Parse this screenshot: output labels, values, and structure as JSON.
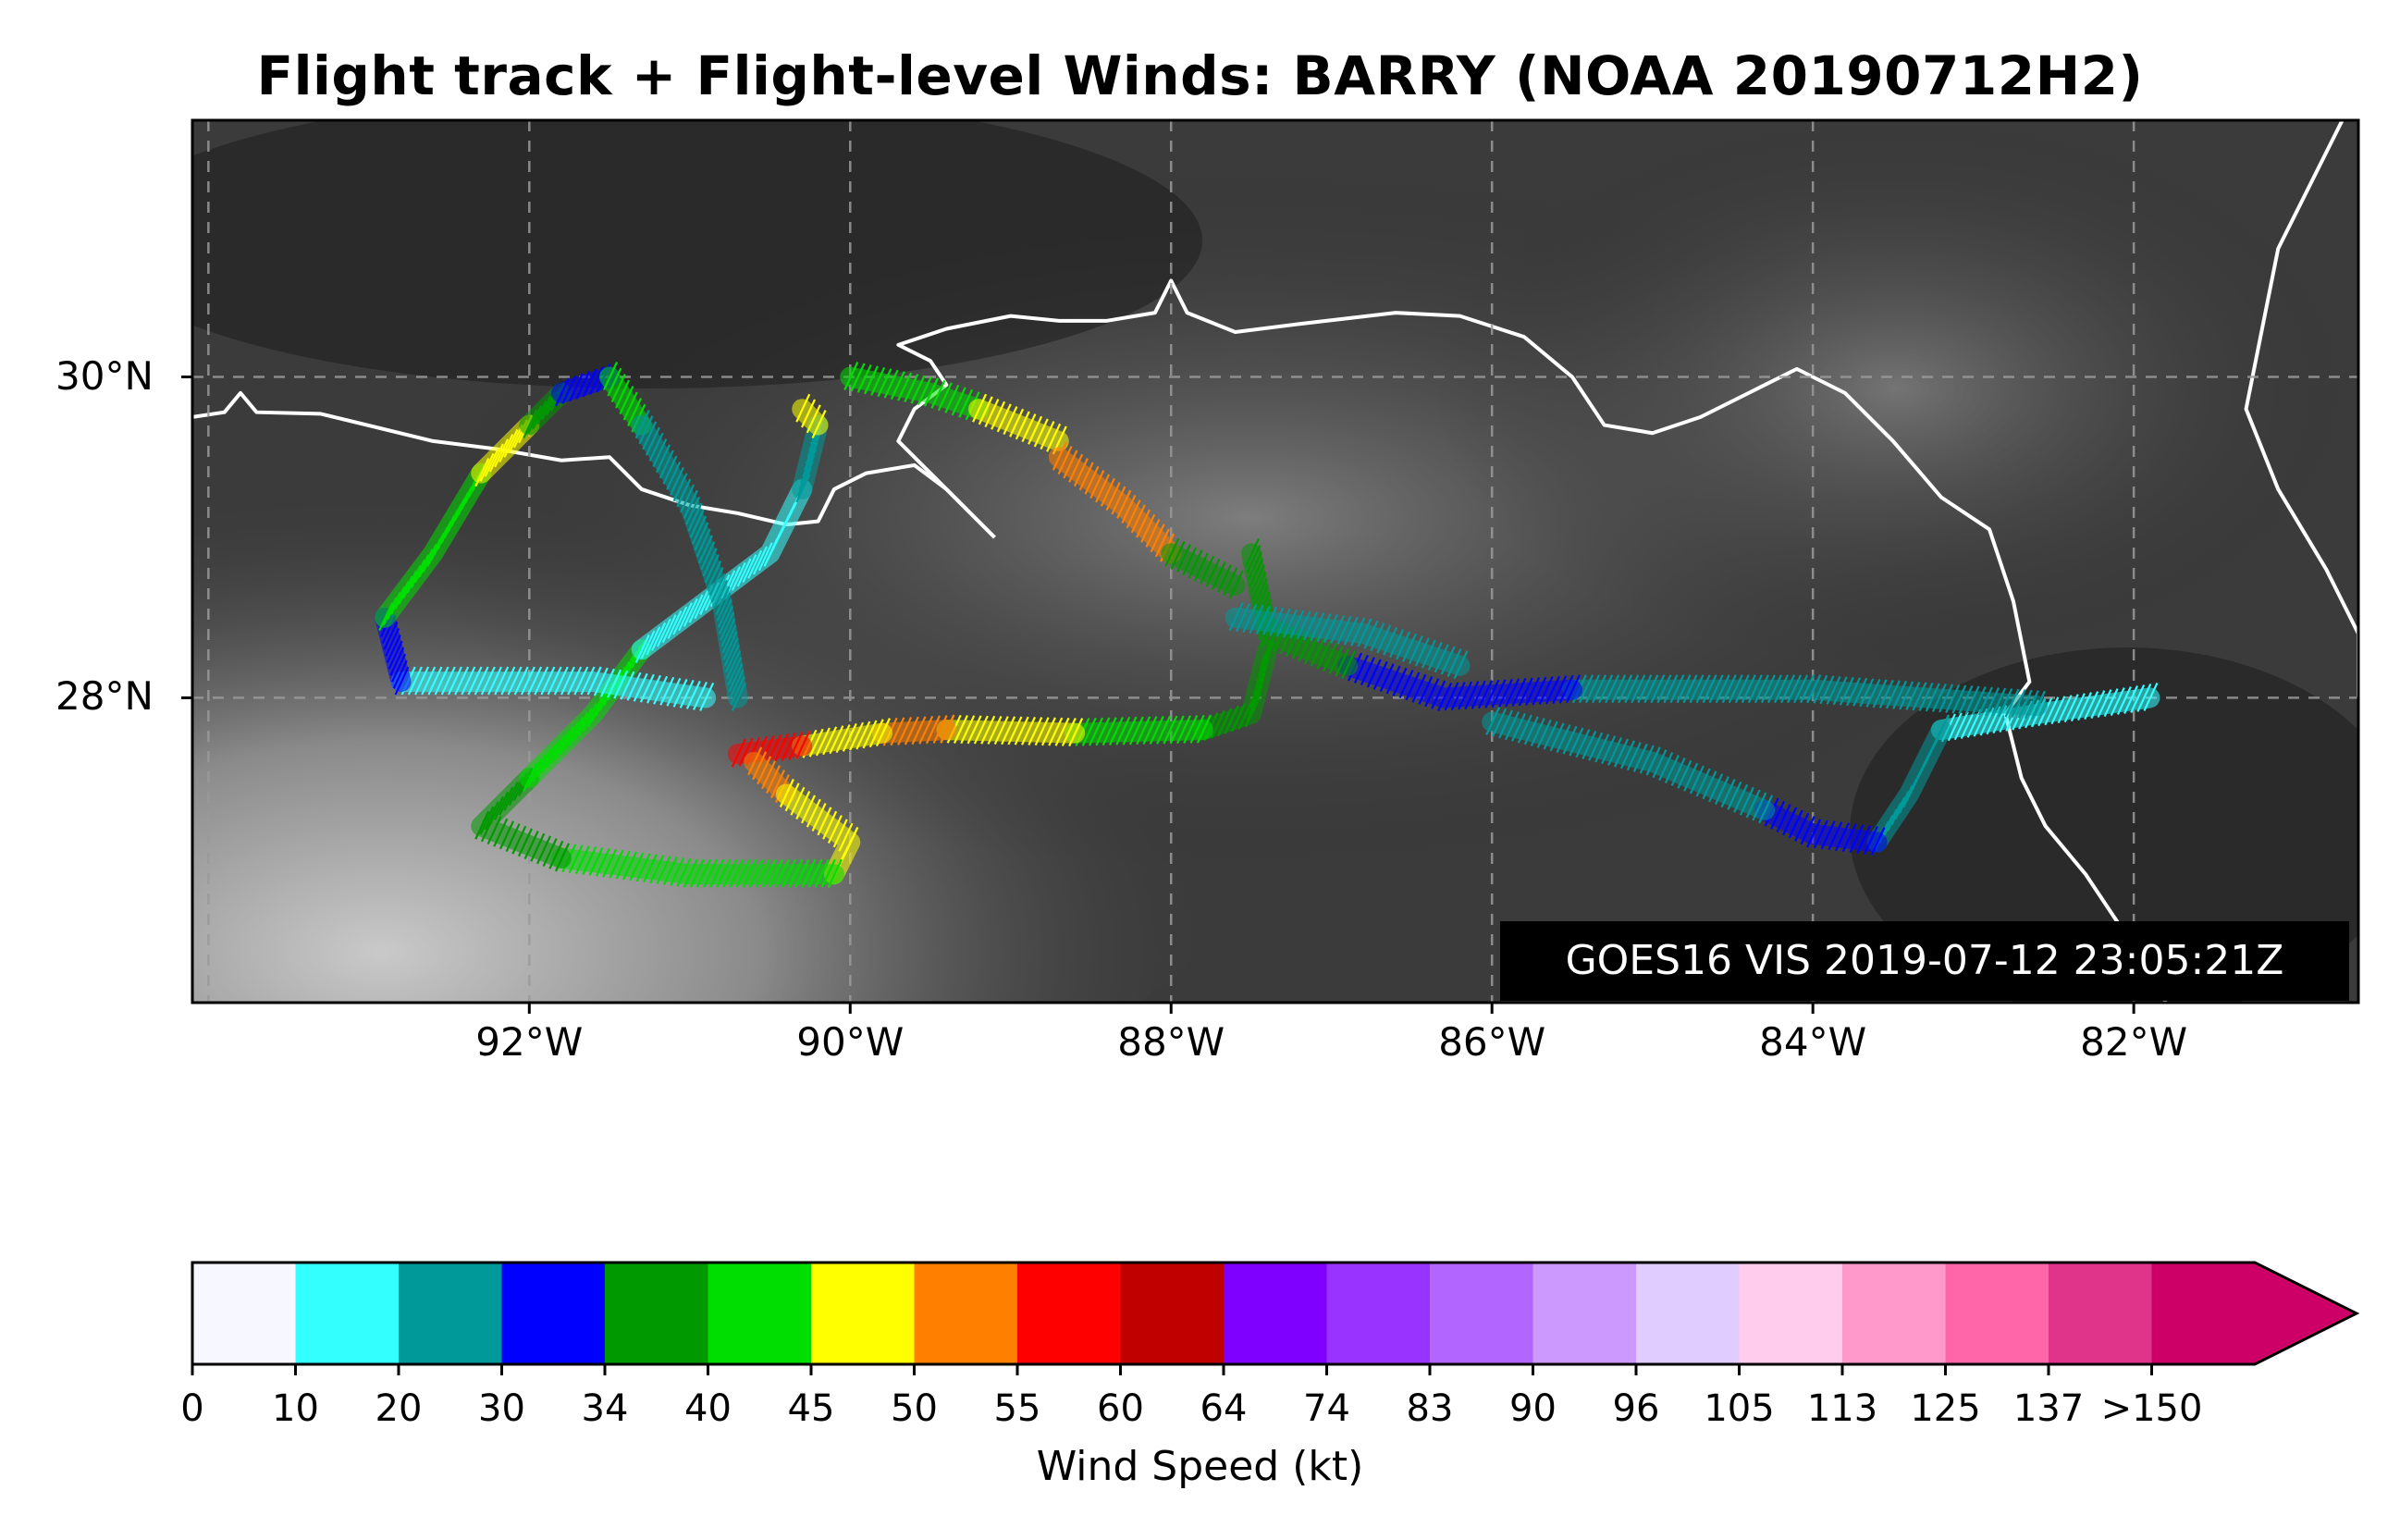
{
  "title": "Flight track + Flight-level Winds: BARRY (NOAA 20190712H2)",
  "map": {
    "lat_labels": [
      "30°N",
      "28°N"
    ],
    "lon_labels": [
      "92°W",
      "90°W",
      "88°W",
      "86°W",
      "84°W",
      "82°W"
    ],
    "extent": {
      "lon_min": -94.1,
      "lon_max": -80.6,
      "lat_min": 26.1,
      "lat_max": 31.6
    },
    "background": "satellite visible imagery (grayscale)",
    "coastline_color": "#ffffff",
    "grid": "dashed"
  },
  "satellite_label": "GOES16 VIS 2019-07-12 23:05:21Z",
  "colorbar": {
    "label": "Wind Speed (kt)",
    "ticks": [
      "0",
      "10",
      "20",
      "30",
      "34",
      "40",
      "45",
      "50",
      "55",
      "60",
      "64",
      "74",
      "83",
      "90",
      "96",
      "105",
      "113",
      "125",
      "137",
      ">150"
    ],
    "colors": [
      "#f7f8ff",
      "#33ffff",
      "#009999",
      "#0000ff",
      "#009900",
      "#00dd00",
      "#ffff00",
      "#ff8000",
      "#ff0000",
      "#c00000",
      "#8000ff",
      "#9933ff",
      "#b366ff",
      "#cc99ff",
      "#e0ccff",
      "#ffccee",
      "#ff99cc",
      "#ff66aa",
      "#e0338a",
      "#cc0066"
    ],
    "extend": "max"
  },
  "track_segments": [
    {
      "color": "#33ffff",
      "pts": [
        [
          -81.9,
          28.0
        ],
        [
          -82.6,
          27.9
        ],
        [
          -83.2,
          27.8
        ]
      ]
    },
    {
      "color": "#009999",
      "pts": [
        [
          -83.2,
          27.8
        ],
        [
          -83.4,
          27.4
        ],
        [
          -83.6,
          27.1
        ]
      ]
    },
    {
      "color": "#0000ff",
      "pts": [
        [
          -83.6,
          27.1
        ],
        [
          -84.0,
          27.15
        ],
        [
          -84.3,
          27.3
        ]
      ]
    },
    {
      "color": "#009999",
      "pts": [
        [
          -84.3,
          27.3
        ],
        [
          -85.0,
          27.6
        ],
        [
          -86.0,
          27.85
        ]
      ]
    },
    {
      "color": "#009999",
      "pts": [
        [
          -82.6,
          27.95
        ],
        [
          -84.0,
          28.05
        ],
        [
          -85.5,
          28.05
        ]
      ]
    },
    {
      "color": "#0000ff",
      "pts": [
        [
          -85.5,
          28.05
        ],
        [
          -86.3,
          28.0
        ],
        [
          -86.9,
          28.2
        ]
      ]
    },
    {
      "color": "#009900",
      "pts": [
        [
          -86.9,
          28.2
        ],
        [
          -87.4,
          28.4
        ],
        [
          -87.5,
          28.9
        ]
      ]
    },
    {
      "color": "#009900",
      "pts": [
        [
          -87.4,
          28.3
        ],
        [
          -87.5,
          27.9
        ],
        [
          -87.8,
          27.8
        ]
      ]
    },
    {
      "color": "#00dd00",
      "pts": [
        [
          -87.8,
          27.8
        ],
        [
          -88.6,
          27.78
        ]
      ]
    },
    {
      "color": "#ffff00",
      "pts": [
        [
          -88.6,
          27.78
        ],
        [
          -89.4,
          27.8
        ]
      ]
    },
    {
      "color": "#ff8000",
      "pts": [
        [
          -89.4,
          27.8
        ],
        [
          -89.8,
          27.78
        ]
      ]
    },
    {
      "color": "#ffff00",
      "pts": [
        [
          -89.8,
          27.78
        ],
        [
          -90.3,
          27.7
        ]
      ]
    },
    {
      "color": "#ff0000",
      "pts": [
        [
          -90.3,
          27.7
        ],
        [
          -90.7,
          27.65
        ]
      ]
    },
    {
      "color": "#ff8000",
      "pts": [
        [
          -90.6,
          27.6
        ],
        [
          -90.4,
          27.4
        ]
      ]
    },
    {
      "color": "#ffff00",
      "pts": [
        [
          -90.4,
          27.4
        ],
        [
          -90.0,
          27.1
        ],
        [
          -90.1,
          26.9
        ]
      ]
    },
    {
      "color": "#00dd00",
      "pts": [
        [
          -90.1,
          26.9
        ],
        [
          -91.0,
          26.9
        ],
        [
          -91.8,
          27.0
        ]
      ]
    },
    {
      "color": "#009900",
      "pts": [
        [
          -91.8,
          27.0
        ],
        [
          -92.3,
          27.2
        ],
        [
          -92.0,
          27.5
        ]
      ]
    },
    {
      "color": "#00dd00",
      "pts": [
        [
          -92.0,
          27.5
        ],
        [
          -91.6,
          27.9
        ],
        [
          -91.3,
          28.3
        ]
      ]
    },
    {
      "color": "#33ffff",
      "pts": [
        [
          -91.3,
          28.3
        ],
        [
          -90.9,
          28.6
        ],
        [
          -90.5,
          28.9
        ],
        [
          -90.3,
          29.3
        ]
      ]
    },
    {
      "color": "#009999",
      "pts": [
        [
          -90.3,
          29.3
        ],
        [
          -90.2,
          29.7
        ]
      ]
    },
    {
      "color": "#ffff00",
      "pts": [
        [
          -90.2,
          29.7
        ],
        [
          -90.3,
          29.8
        ]
      ]
    },
    {
      "color": "#00dd00",
      "pts": [
        [
          -90.0,
          30.0
        ],
        [
          -89.5,
          29.9
        ],
        [
          -89.2,
          29.8
        ]
      ]
    },
    {
      "color": "#ffff00",
      "pts": [
        [
          -89.2,
          29.8
        ],
        [
          -88.7,
          29.6
        ]
      ]
    },
    {
      "color": "#ff8000",
      "pts": [
        [
          -88.7,
          29.5
        ],
        [
          -88.3,
          29.2
        ],
        [
          -88.0,
          28.9
        ]
      ]
    },
    {
      "color": "#009900",
      "pts": [
        [
          -88.0,
          28.9
        ],
        [
          -87.6,
          28.7
        ]
      ]
    },
    {
      "color": "#009999",
      "pts": [
        [
          -87.6,
          28.5
        ],
        [
          -86.8,
          28.4
        ],
        [
          -86.2,
          28.2
        ]
      ]
    },
    {
      "color": "#33ffff",
      "pts": [
        [
          -90.9,
          28.0
        ],
        [
          -91.6,
          28.1
        ],
        [
          -92.8,
          28.1
        ]
      ]
    },
    {
      "color": "#0000ff",
      "pts": [
        [
          -92.8,
          28.1
        ],
        [
          -92.9,
          28.5
        ]
      ]
    },
    {
      "color": "#00dd00",
      "pts": [
        [
          -92.9,
          28.5
        ],
        [
          -92.6,
          28.9
        ],
        [
          -92.3,
          29.4
        ]
      ]
    },
    {
      "color": "#ffff00",
      "pts": [
        [
          -92.3,
          29.4
        ],
        [
          -92.0,
          29.7
        ]
      ]
    },
    {
      "color": "#009900",
      "pts": [
        [
          -92.0,
          29.7
        ],
        [
          -91.8,
          29.9
        ]
      ]
    },
    {
      "color": "#0000ff",
      "pts": [
        [
          -91.8,
          29.9
        ],
        [
          -91.5,
          30.0
        ]
      ]
    },
    {
      "color": "#00dd00",
      "pts": [
        [
          -91.5,
          30.0
        ],
        [
          -91.3,
          29.7
        ]
      ]
    },
    {
      "color": "#009999",
      "pts": [
        [
          -91.3,
          29.7
        ],
        [
          -91.0,
          29.2
        ],
        [
          -90.8,
          28.6
        ],
        [
          -90.7,
          28.0
        ]
      ]
    }
  ]
}
